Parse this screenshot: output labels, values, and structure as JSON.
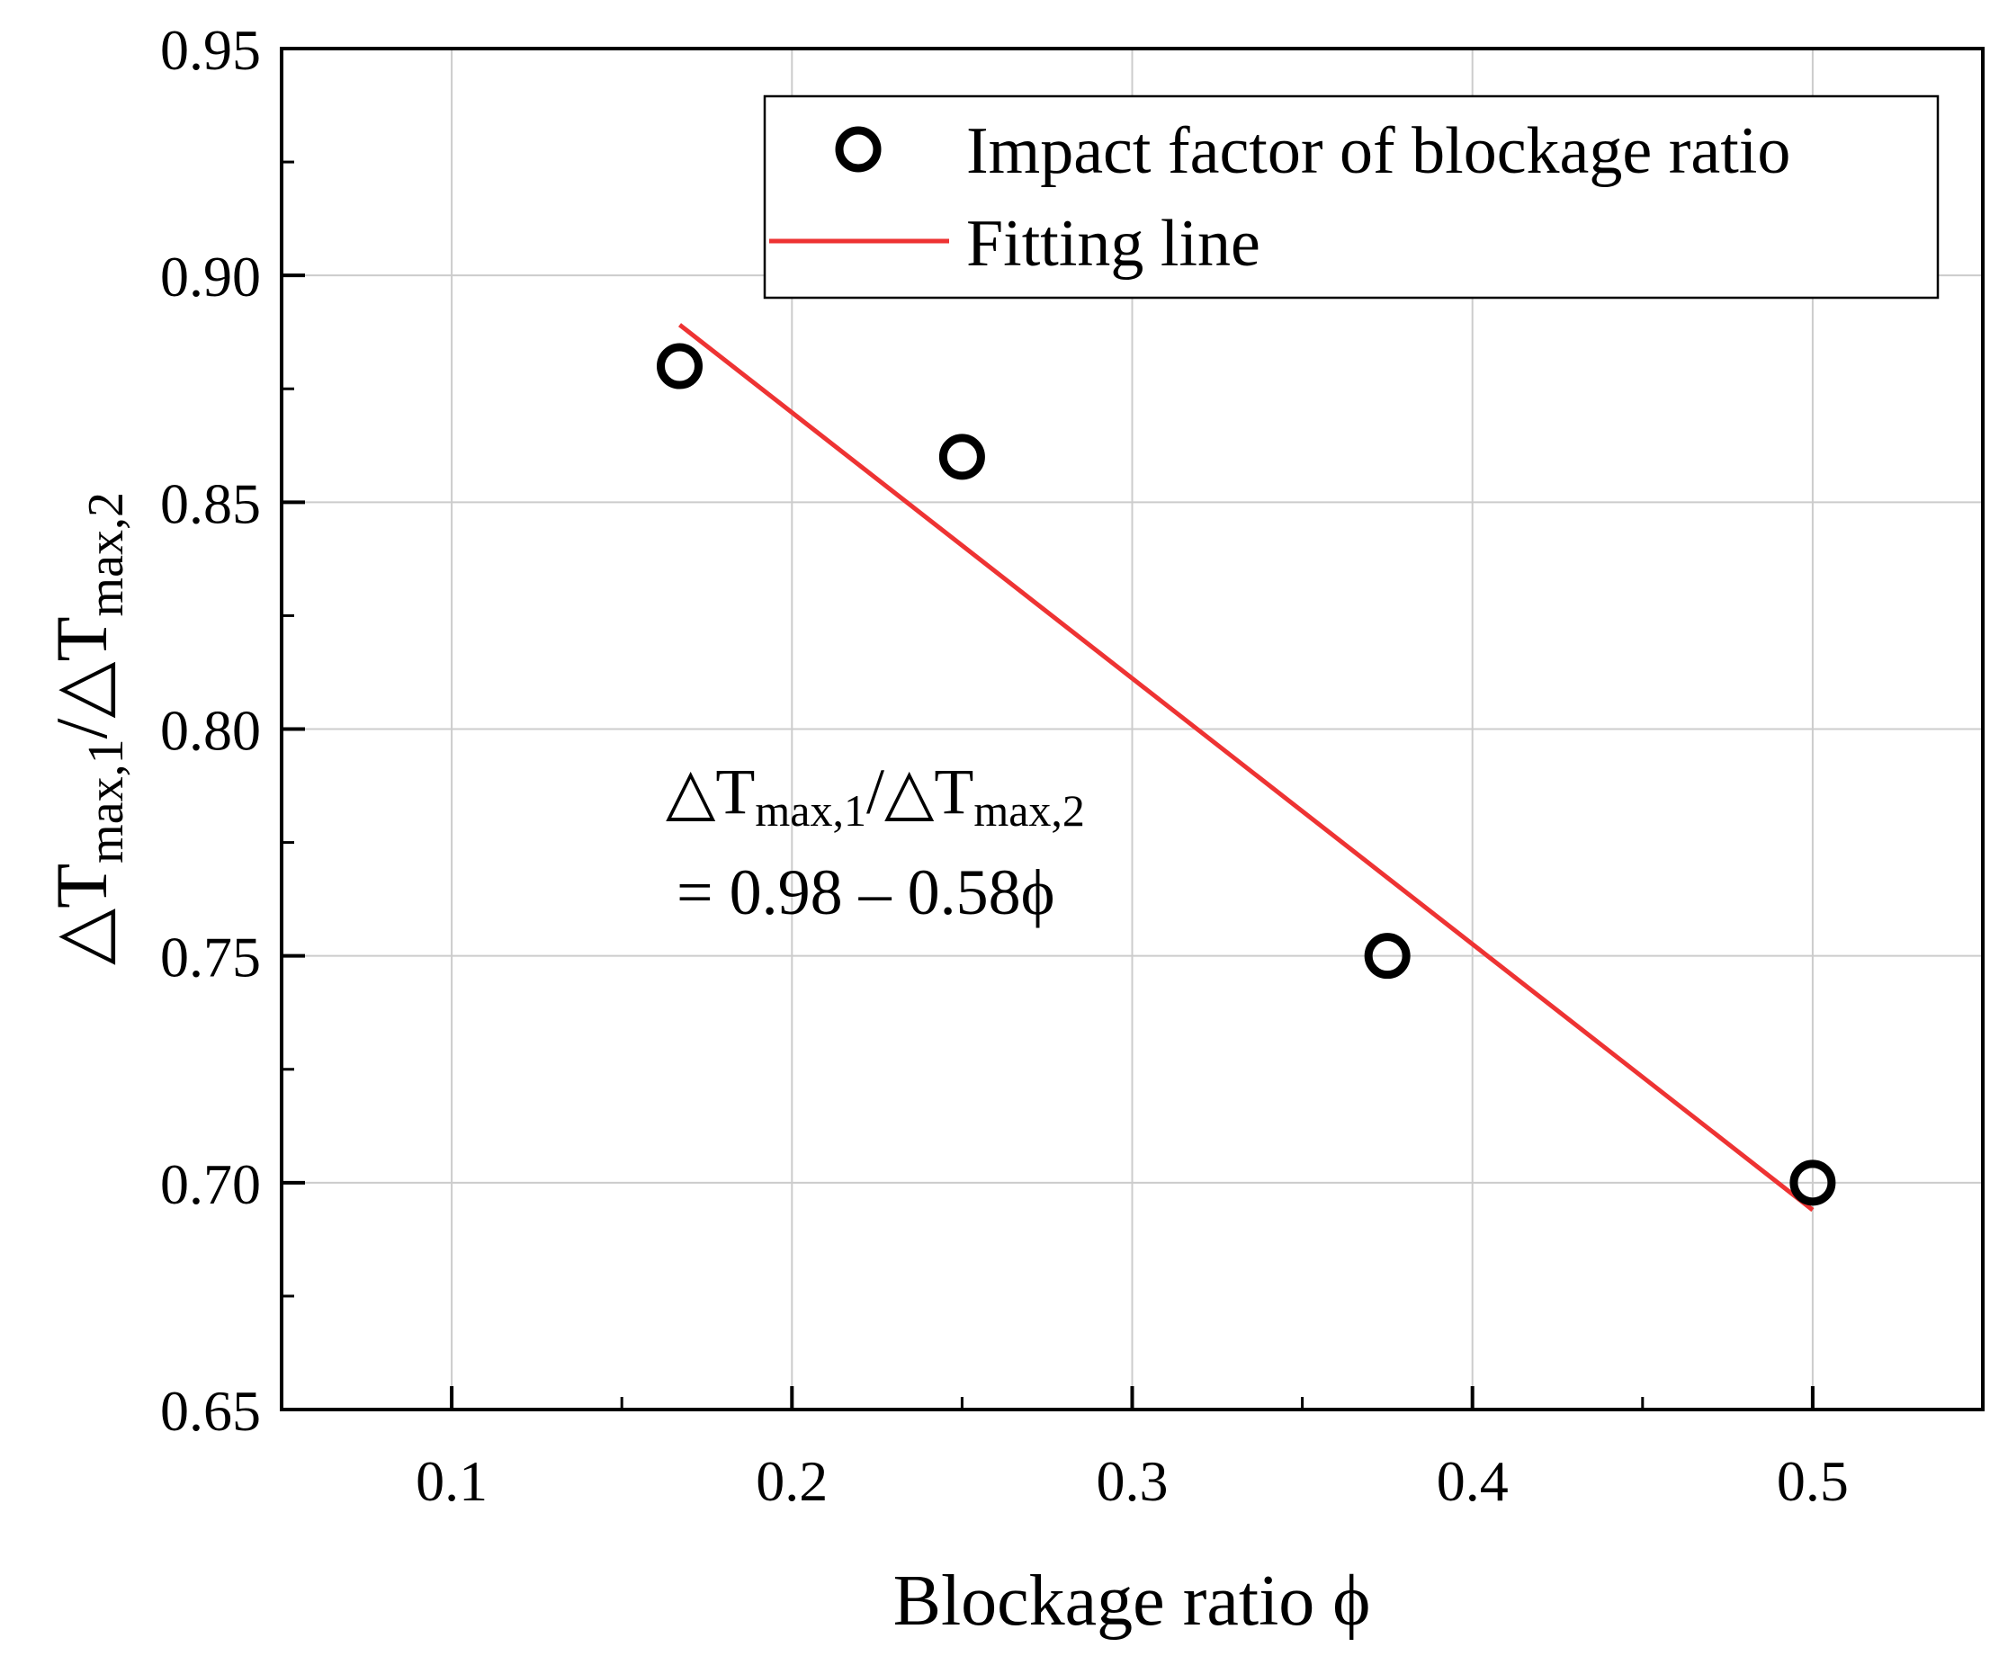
{
  "chart_data": {
    "type": "scatter",
    "xlabel": "Blockage ratio ϕ",
    "ylabel": {
      "prefix": "△T",
      "sub1": "max,1",
      "slash": "/△T",
      "sub2": "max,2"
    },
    "xlim": [
      0.05,
      0.55
    ],
    "ylim": [
      0.65,
      0.95
    ],
    "xticks": [
      0.1,
      0.2,
      0.3,
      0.4,
      0.5
    ],
    "xtick_labels": [
      "0.1",
      "0.2",
      "0.3",
      "0.4",
      "0.5"
    ],
    "yticks": [
      0.65,
      0.7,
      0.75,
      0.8,
      0.85,
      0.9,
      0.95
    ],
    "ytick_labels": [
      "0.65",
      "0.70",
      "0.75",
      "0.80",
      "0.85",
      "0.90",
      "0.95"
    ],
    "x_minor_ticks": [
      0.15,
      0.25,
      0.35,
      0.45
    ],
    "y_minor_ticks": [
      0.675,
      0.725,
      0.775,
      0.825,
      0.875,
      0.925
    ],
    "grid": true,
    "legend_position": "top-right",
    "series": [
      {
        "name": "Impact factor of blockage ratio",
        "kind": "scatter",
        "marker": "open-circle",
        "color": "#000000",
        "x": [
          0.167,
          0.25,
          0.375,
          0.5
        ],
        "y": [
          0.88,
          0.86,
          0.75,
          0.7
        ]
      },
      {
        "name": "Fitting line",
        "kind": "line",
        "color": "#ee3333",
        "x": [
          0.167,
          0.5
        ],
        "y": [
          0.8891,
          0.694
        ]
      }
    ],
    "annotation": {
      "line1_prefix": "△T",
      "line1_sub1": "max,1",
      "line1_slash": "/△T",
      "line1_sub2": "max,2",
      "line2": "= 0.98 – 0.58ϕ",
      "anchor": {
        "x": 0.305,
        "y": 0.79
      }
    }
  }
}
